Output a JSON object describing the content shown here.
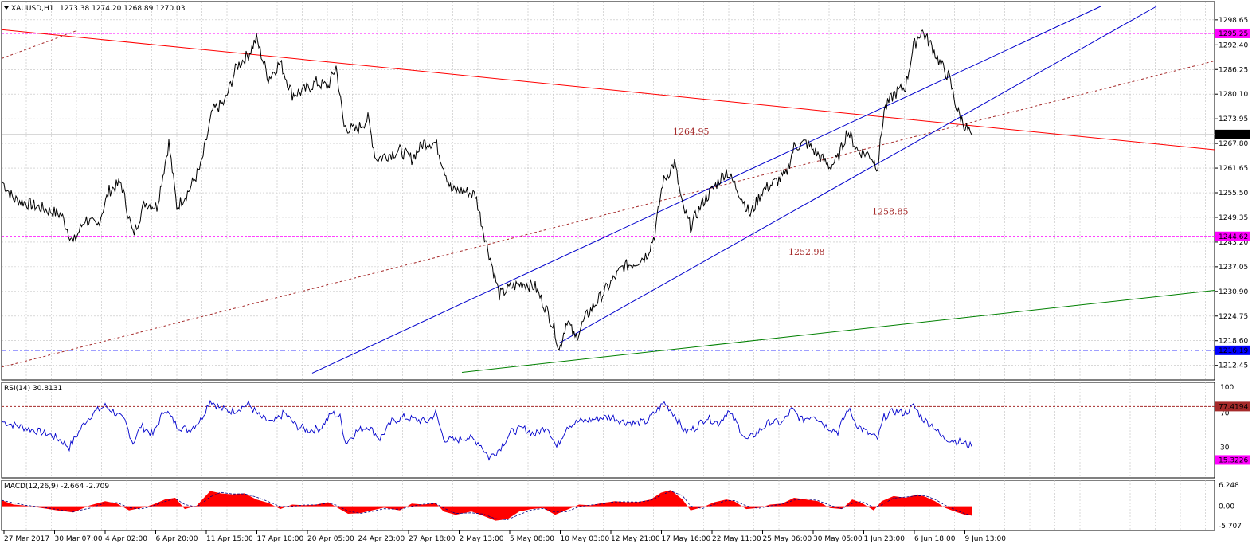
{
  "chart_data": [
    {
      "type": "line",
      "panel": "price",
      "symbol_label": "XAUUSD,H1",
      "ohlc_label": "1273.38 1274.20 1268.89 1270.03",
      "ylim": [
        1210.0,
        1302.0
      ],
      "y_ticks": [
        "1298.65",
        "1292.40",
        "1286.25",
        "1280.10",
        "1273.95",
        "1267.80",
        "1261.65",
        "1255.50",
        "1249.35",
        "1243.20",
        "1237.05",
        "1230.90",
        "1224.75",
        "1218.60",
        "1212.45"
      ],
      "x_ticks": [
        "27 Mar 2017",
        "30 Mar 07:00",
        "4 Apr 02:00",
        "6 Apr 20:00",
        "11 Apr 15:00",
        "17 Apr 10:00",
        "20 Apr 05:00",
        "24 Apr 23:00",
        "27 Apr 18:00",
        "2 May 13:00",
        "5 May 08:00",
        "10 May 03:00",
        "12 May 21:00",
        "17 May 16:00",
        "22 May 11:00",
        "25 May 06:00",
        "30 May 05:00",
        "1 Jun 23:00",
        "6 Jun 18:00",
        "9 Jun 13:00"
      ],
      "price_path": [
        [
          0,
          1258.5
        ],
        [
          15,
          1254
        ],
        [
          30,
          1253
        ],
        [
          45,
          1252
        ],
        [
          60,
          1251
        ],
        [
          75,
          1250
        ],
        [
          90,
          1243
        ],
        [
          105,
          1249
        ],
        [
          120,
          1247
        ],
        [
          135,
          1256
        ],
        [
          150,
          1258
        ],
        [
          165,
          1245
        ],
        [
          180,
          1253
        ],
        [
          195,
          1252
        ],
        [
          210,
          1268
        ],
        [
          220,
          1252
        ],
        [
          235,
          1256
        ],
        [
          250,
          1262
        ],
        [
          265,
          1276
        ],
        [
          280,
          1278
        ],
        [
          295,
          1287
        ],
        [
          310,
          1290
        ],
        [
          320,
          1294
        ],
        [
          335,
          1284
        ],
        [
          350,
          1288
        ],
        [
          365,
          1280
        ],
        [
          380,
          1281
        ],
        [
          395,
          1283
        ],
        [
          410,
          1282
        ],
        [
          420,
          1287
        ],
        [
          430,
          1272
        ],
        [
          445,
          1271
        ],
        [
          460,
          1274
        ],
        [
          470,
          1264
        ],
        [
          485,
          1265
        ],
        [
          500,
          1266
        ],
        [
          515,
          1264
        ],
        [
          530,
          1268
        ],
        [
          545,
          1268
        ],
        [
          555,
          1262
        ],
        [
          565,
          1256
        ],
        [
          580,
          1256
        ],
        [
          595,
          1255
        ],
        [
          605,
          1246
        ],
        [
          615,
          1238
        ],
        [
          625,
          1230
        ],
        [
          640,
          1232
        ],
        [
          655,
          1233
        ],
        [
          670,
          1232
        ],
        [
          685,
          1226
        ],
        [
          695,
          1221
        ],
        [
          700,
          1216
        ],
        [
          710,
          1224
        ],
        [
          720,
          1219
        ],
        [
          735,
          1225
        ],
        [
          750,
          1229
        ],
        [
          765,
          1233
        ],
        [
          780,
          1237
        ],
        [
          795,
          1238
        ],
        [
          810,
          1240
        ],
        [
          820,
          1245
        ],
        [
          830,
          1258
        ],
        [
          845,
          1263
        ],
        [
          855,
          1252
        ],
        [
          865,
          1247
        ],
        [
          880,
          1253
        ],
        [
          895,
          1257
        ],
        [
          910,
          1261
        ],
        [
          925,
          1256
        ],
        [
          940,
          1250
        ],
        [
          955,
          1256
        ],
        [
          970,
          1258
        ],
        [
          985,
          1260
        ],
        [
          995,
          1267
        ],
        [
          1010,
          1268
        ],
        [
          1025,
          1265
        ],
        [
          1040,
          1262
        ],
        [
          1050,
          1264
        ],
        [
          1062,
          1271
        ],
        [
          1075,
          1266
        ],
        [
          1090,
          1265
        ],
        [
          1100,
          1262
        ],
        [
          1108,
          1276
        ],
        [
          1120,
          1280
        ],
        [
          1135,
          1282
        ],
        [
          1145,
          1292
        ],
        [
          1155,
          1296
        ],
        [
          1168,
          1292
        ],
        [
          1178,
          1288
        ],
        [
          1190,
          1284
        ],
        [
          1200,
          1276
        ],
        [
          1210,
          1272
        ],
        [
          1218,
          1270
        ]
      ],
      "horizontal_levels": [
        {
          "label": "1295.25",
          "value": 1295.25,
          "color": "#ff00ff"
        },
        {
          "label": "1244.62",
          "value": 1244.62,
          "color": "#ff00ff"
        },
        {
          "label": "1216.19",
          "value": 1216.19,
          "color": "#0000ff"
        }
      ],
      "current_price": {
        "label": "1270.03",
        "value": 1270.03
      },
      "trend_lines": [
        {
          "color": "#ff0000",
          "style": "solid",
          "points": [
            [
              0,
              1296.2
            ],
            [
              1525,
              1266.2
            ]
          ]
        },
        {
          "color": "#a52a2a",
          "style": "dotted",
          "points": [
            [
              0,
              1212
            ],
            [
              1525,
              1288.5
            ]
          ]
        },
        {
          "color": "#a52a2a",
          "style": "dotted",
          "points": [
            [
              0,
              1289
            ],
            [
              95,
              1296
            ]
          ]
        },
        {
          "color": "#0000cc",
          "style": "solid",
          "points": [
            [
              390,
              1210.5
            ],
            [
              1380,
              1302
            ]
          ]
        },
        {
          "color": "#0000cc",
          "style": "solid",
          "points": [
            [
              700,
              1218
            ],
            [
              1450,
              1302
            ]
          ]
        },
        {
          "color": "#008000",
          "style": "solid",
          "points": [
            [
              578,
              1210.7
            ],
            [
              1525,
              1231.2
            ]
          ]
        }
      ],
      "annotations": [
        {
          "text": "1264.95",
          "x": 845,
          "y": 1270
        },
        {
          "text": "1258.85",
          "x": 1095,
          "y": 1250
        },
        {
          "text": "1252.98",
          "x": 990,
          "y": 1240
        }
      ]
    },
    {
      "type": "line",
      "panel": "rsi",
      "label": "RSI(14) 30.8131",
      "ylim": [
        0,
        100
      ],
      "y_ticks": [
        "100",
        "70",
        "30"
      ],
      "levels": [
        {
          "label": "77.4194",
          "value": 77.4194
        },
        {
          "label": "15.3226",
          "value": 15.3226
        }
      ],
      "values_path": [
        [
          0,
          60
        ],
        [
          20,
          55
        ],
        [
          40,
          50
        ],
        [
          60,
          45
        ],
        [
          75,
          38
        ],
        [
          85,
          30
        ],
        [
          95,
          45
        ],
        [
          105,
          60
        ],
        [
          115,
          70
        ],
        [
          130,
          78
        ],
        [
          140,
          72
        ],
        [
          155,
          60
        ],
        [
          165,
          35
        ],
        [
          175,
          55
        ],
        [
          190,
          45
        ],
        [
          205,
          75
        ],
        [
          220,
          55
        ],
        [
          235,
          50
        ],
        [
          250,
          62
        ],
        [
          262,
          85
        ],
        [
          275,
          75
        ],
        [
          290,
          72
        ],
        [
          310,
          80
        ],
        [
          325,
          65
        ],
        [
          340,
          58
        ],
        [
          355,
          70
        ],
        [
          370,
          55
        ],
        [
          385,
          50
        ],
        [
          400,
          52
        ],
        [
          415,
          70
        ],
        [
          425,
          65
        ],
        [
          432,
          35
        ],
        [
          445,
          48
        ],
        [
          460,
          55
        ],
        [
          475,
          40
        ],
        [
          490,
          60
        ],
        [
          505,
          65
        ],
        [
          520,
          62
        ],
        [
          535,
          60
        ],
        [
          545,
          70
        ],
        [
          555,
          40
        ],
        [
          570,
          38
        ],
        [
          585,
          42
        ],
        [
          600,
          35
        ],
        [
          612,
          18
        ],
        [
          625,
          28
        ],
        [
          640,
          48
        ],
        [
          655,
          52
        ],
        [
          670,
          45
        ],
        [
          685,
          55
        ],
        [
          697,
          30
        ],
        [
          710,
          55
        ],
        [
          725,
          60
        ],
        [
          740,
          62
        ],
        [
          755,
          65
        ],
        [
          768,
          65
        ],
        [
          780,
          60
        ],
        [
          795,
          58
        ],
        [
          810,
          60
        ],
        [
          822,
          72
        ],
        [
          832,
          82
        ],
        [
          845,
          68
        ],
        [
          858,
          48
        ],
        [
          870,
          52
        ],
        [
          885,
          65
        ],
        [
          900,
          58
        ],
        [
          912,
          72
        ],
        [
          925,
          55
        ],
        [
          935,
          38
        ],
        [
          950,
          48
        ],
        [
          965,
          60
        ],
        [
          980,
          58
        ],
        [
          992,
          74
        ],
        [
          1005,
          62
        ],
        [
          1020,
          68
        ],
        [
          1035,
          55
        ],
        [
          1050,
          48
        ],
        [
          1063,
          75
        ],
        [
          1075,
          55
        ],
        [
          1090,
          45
        ],
        [
          1100,
          40
        ],
        [
          1108,
          65
        ],
        [
          1120,
          72
        ],
        [
          1135,
          70
        ],
        [
          1145,
          78
        ],
        [
          1158,
          62
        ],
        [
          1170,
          55
        ],
        [
          1180,
          42
        ],
        [
          1195,
          38
        ],
        [
          1205,
          36
        ],
        [
          1218,
          31
        ]
      ]
    },
    {
      "type": "area",
      "panel": "macd",
      "label": "MACD(12,26,9) -2.664 -2.709",
      "ylim": [
        -5.707,
        6.248
      ],
      "y_ticks": [
        "6.248",
        "0.00",
        "-5.707"
      ],
      "values_path": [
        [
          0,
          1.8
        ],
        [
          15,
          0.5
        ],
        [
          30,
          0.2
        ],
        [
          50,
          -0.5
        ],
        [
          70,
          -1.2
        ],
        [
          90,
          -1.8
        ],
        [
          110,
          0.2
        ],
        [
          130,
          1.5
        ],
        [
          145,
          0.8
        ],
        [
          160,
          -1.2
        ],
        [
          175,
          -0.5
        ],
        [
          190,
          0.5
        ],
        [
          205,
          2.0
        ],
        [
          218,
          2.5
        ],
        [
          230,
          -0.8
        ],
        [
          245,
          0.2
        ],
        [
          262,
          4.5
        ],
        [
          275,
          3.8
        ],
        [
          290,
          3.5
        ],
        [
          305,
          3.8
        ],
        [
          320,
          2.0
        ],
        [
          335,
          1.0
        ],
        [
          350,
          -0.8
        ],
        [
          365,
          0.5
        ],
        [
          380,
          0.3
        ],
        [
          395,
          0.5
        ],
        [
          410,
          1.2
        ],
        [
          420,
          -0.2
        ],
        [
          435,
          -2.2
        ],
        [
          450,
          -2.0
        ],
        [
          465,
          -1.2
        ],
        [
          480,
          -0.4
        ],
        [
          500,
          -1.2
        ],
        [
          515,
          0.8
        ],
        [
          530,
          0.5
        ],
        [
          545,
          1.0
        ],
        [
          555,
          -1.5
        ],
        [
          570,
          -2.5
        ],
        [
          590,
          -1.5
        ],
        [
          605,
          -2.8
        ],
        [
          620,
          -4.2
        ],
        [
          635,
          -3.8
        ],
        [
          650,
          -1.5
        ],
        [
          665,
          -0.8
        ],
        [
          680,
          -0.5
        ],
        [
          695,
          -2.5
        ],
        [
          710,
          -1.0
        ],
        [
          725,
          0.5
        ],
        [
          740,
          0.3
        ],
        [
          755,
          1.0
        ],
        [
          770,
          1.5
        ],
        [
          785,
          1.2
        ],
        [
          800,
          1.3
        ],
        [
          815,
          2.0
        ],
        [
          828,
          4.0
        ],
        [
          840,
          4.8
        ],
        [
          855,
          2.0
        ],
        [
          865,
          -1.2
        ],
        [
          880,
          -0.3
        ],
        [
          895,
          1.2
        ],
        [
          910,
          2.0
        ],
        [
          920,
          1.5
        ],
        [
          935,
          -0.8
        ],
        [
          950,
          -0.5
        ],
        [
          965,
          0.5
        ],
        [
          980,
          0.8
        ],
        [
          995,
          2.5
        ],
        [
          1010,
          2.0
        ],
        [
          1025,
          1.5
        ],
        [
          1040,
          -0.5
        ],
        [
          1055,
          -0.8
        ],
        [
          1068,
          2.0
        ],
        [
          1080,
          1.0
        ],
        [
          1095,
          -1.2
        ],
        [
          1105,
          1.5
        ],
        [
          1120,
          3.0
        ],
        [
          1135,
          2.5
        ],
        [
          1150,
          3.5
        ],
        [
          1160,
          2.8
        ],
        [
          1172,
          1.5
        ],
        [
          1185,
          -0.5
        ],
        [
          1200,
          -1.8
        ],
        [
          1210,
          -2.5
        ],
        [
          1218,
          -2.7
        ]
      ]
    }
  ]
}
